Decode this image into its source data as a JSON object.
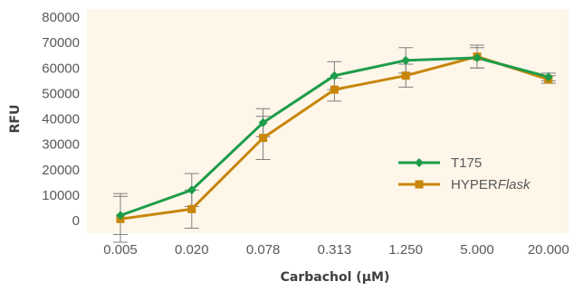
{
  "chart_data": {
    "type": "line",
    "title": "",
    "xlabel": "Carbachol (µM)",
    "ylabel": "RFU",
    "categories": [
      "0.005",
      "0.020",
      "0.078",
      "0.313",
      "1.250",
      "5.000",
      "20.000"
    ],
    "yticks": [
      "0",
      "10000",
      "20000",
      "30000",
      "40000",
      "50000",
      "60000",
      "70000",
      "80000"
    ],
    "ylim": [
      0,
      80000
    ],
    "grid": false,
    "legend_position": "right",
    "background_color": "#fdf6e9",
    "series": [
      {
        "name": "T175",
        "color": "#1e9c4a",
        "marker": "diamond",
        "values": [
          2000,
          12000,
          38500,
          57000,
          63000,
          64000,
          56500
        ],
        "error": [
          7500,
          6500,
          5500,
          5500,
          5000,
          4000,
          1500
        ]
      },
      {
        "name": "HYPER",
        "name_suffix": "Flask",
        "color": "#c8860a",
        "marker": "square",
        "values": [
          600,
          4500,
          32500,
          51500,
          57000,
          64500,
          55500
        ],
        "error": [
          10000,
          7500,
          8500,
          4500,
          4500,
          4500,
          1500
        ]
      }
    ]
  }
}
